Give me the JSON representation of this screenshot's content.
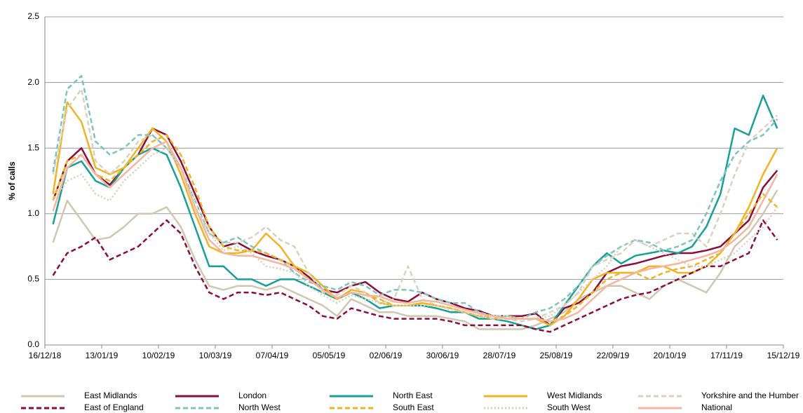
{
  "chart_data": {
    "type": "line",
    "y_label": "% of calls",
    "x": [
      "2018-12-20",
      "2018-12-27",
      "2019-01-03",
      "2019-01-10",
      "2019-01-17",
      "2019-01-24",
      "2019-01-31",
      "2019-02-07",
      "2019-02-14",
      "2019-02-21",
      "2019-02-28",
      "2019-03-07",
      "2019-03-14",
      "2019-03-21",
      "2019-03-28",
      "2019-04-04",
      "2019-04-11",
      "2019-04-18",
      "2019-04-25",
      "2019-05-02",
      "2019-05-09",
      "2019-05-16",
      "2019-05-23",
      "2019-05-30",
      "2019-06-06",
      "2019-06-13",
      "2019-06-20",
      "2019-06-27",
      "2019-07-04",
      "2019-07-11",
      "2019-07-18",
      "2019-07-25",
      "2019-08-01",
      "2019-08-08",
      "2019-08-15",
      "2019-08-22",
      "2019-08-29",
      "2019-09-05",
      "2019-09-12",
      "2019-09-19",
      "2019-09-26",
      "2019-10-03",
      "2019-10-10",
      "2019-10-17",
      "2019-10-24",
      "2019-10-31",
      "2019-11-07",
      "2019-11-14",
      "2019-11-21",
      "2019-11-28",
      "2019-12-05",
      "2019-12-12"
    ],
    "xlim": [
      "2018-12-16",
      "2019-12-15"
    ],
    "xticks": [
      {
        "value": "2018-12-16",
        "label": "16/12/18"
      },
      {
        "value": "2019-01-13",
        "label": "13/01/19"
      },
      {
        "value": "2019-02-10",
        "label": "10/02/19"
      },
      {
        "value": "2019-03-10",
        "label": "10/03/19"
      },
      {
        "value": "2019-04-07",
        "label": "07/04/19"
      },
      {
        "value": "2019-05-05",
        "label": "05/05/19"
      },
      {
        "value": "2019-06-02",
        "label": "02/06/19"
      },
      {
        "value": "2019-06-30",
        "label": "30/06/19"
      },
      {
        "value": "2019-07-28",
        "label": "28/07/19"
      },
      {
        "value": "2019-08-25",
        "label": "25/08/19"
      },
      {
        "value": "2019-09-22",
        "label": "22/09/19"
      },
      {
        "value": "2019-10-20",
        "label": "20/10/19"
      },
      {
        "value": "2019-11-17",
        "label": "17/11/19"
      },
      {
        "value": "2019-12-15",
        "label": "15/12/19"
      }
    ],
    "ylim": [
      0,
      2.5
    ],
    "yticks": [
      {
        "value": 0,
        "label": "0.0"
      },
      0.5,
      {
        "value": 1,
        "label": "1.0"
      },
      1.5,
      {
        "value": 2,
        "label": "2.0"
      },
      2.5
    ],
    "grid": true,
    "series": [
      {
        "name": "East Midlands",
        "color": "#cfc7b0",
        "style": "solid",
        "values": [
          0.78,
          1.1,
          0.95,
          0.8,
          0.82,
          0.9,
          1.0,
          1.0,
          1.05,
          0.9,
          0.65,
          0.45,
          0.42,
          0.45,
          0.45,
          0.42,
          0.45,
          0.4,
          0.35,
          0.3,
          0.22,
          0.35,
          0.3,
          0.25,
          0.25,
          0.22,
          0.22,
          0.22,
          0.2,
          0.18,
          0.12,
          0.12,
          0.12,
          0.12,
          0.15,
          0.2,
          0.25,
          0.35,
          0.4,
          0.45,
          0.45,
          0.4,
          0.35,
          0.45,
          0.5,
          0.45,
          0.4,
          0.55,
          0.75,
          0.85,
          1.0,
          1.18
        ]
      },
      {
        "name": "London",
        "color": "#8b0d3a",
        "style": "solid",
        "values": [
          1.1,
          1.4,
          1.5,
          1.3,
          1.22,
          1.35,
          1.45,
          1.65,
          1.6,
          1.4,
          1.15,
          0.9,
          0.75,
          0.78,
          0.72,
          0.68,
          0.65,
          0.6,
          0.52,
          0.42,
          0.4,
          0.45,
          0.48,
          0.4,
          0.35,
          0.33,
          0.4,
          0.35,
          0.32,
          0.28,
          0.26,
          0.22,
          0.22,
          0.22,
          0.24,
          0.15,
          0.28,
          0.32,
          0.4,
          0.55,
          0.6,
          0.62,
          0.65,
          0.68,
          0.7,
          0.7,
          0.72,
          0.75,
          0.85,
          0.95,
          1.2,
          1.33
        ]
      },
      {
        "name": "North East",
        "color": "#17a097",
        "style": "solid",
        "values": [
          0.92,
          1.35,
          1.4,
          1.25,
          1.2,
          1.35,
          1.45,
          1.5,
          1.45,
          1.2,
          0.9,
          0.6,
          0.6,
          0.5,
          0.5,
          0.45,
          0.5,
          0.5,
          0.45,
          0.4,
          0.35,
          0.4,
          0.35,
          0.28,
          0.3,
          0.3,
          0.3,
          0.28,
          0.25,
          0.25,
          0.2,
          0.2,
          0.18,
          0.15,
          0.12,
          0.15,
          0.3,
          0.45,
          0.6,
          0.7,
          0.62,
          0.68,
          0.7,
          0.72,
          0.7,
          0.75,
          0.9,
          1.15,
          1.65,
          1.6,
          1.9,
          1.65
        ]
      },
      {
        "name": "West Midlands",
        "color": "#f0b323",
        "style": "solid",
        "values": [
          1.15,
          1.85,
          1.7,
          1.35,
          1.3,
          1.35,
          1.5,
          1.65,
          1.55,
          1.3,
          1.0,
          0.75,
          0.7,
          0.7,
          0.72,
          0.85,
          0.75,
          0.6,
          0.55,
          0.45,
          0.35,
          0.42,
          0.4,
          0.32,
          0.3,
          0.3,
          0.32,
          0.3,
          0.28,
          0.25,
          0.22,
          0.2,
          0.22,
          0.2,
          0.2,
          0.15,
          0.22,
          0.35,
          0.5,
          0.55,
          0.55,
          0.55,
          0.6,
          0.6,
          0.55,
          0.55,
          0.6,
          0.7,
          0.85,
          1.05,
          1.3,
          1.5
        ]
      },
      {
        "name": "Yorkshire and the Humber",
        "color": "#d9d2bd",
        "style": "dashed",
        "values": [
          1.3,
          1.8,
          1.95,
          1.4,
          1.3,
          1.4,
          1.55,
          1.6,
          1.5,
          1.35,
          1.05,
          0.85,
          0.78,
          0.78,
          0.82,
          0.9,
          0.8,
          0.75,
          0.55,
          0.4,
          0.38,
          0.45,
          0.4,
          0.32,
          0.35,
          0.6,
          0.35,
          0.3,
          0.28,
          0.25,
          0.22,
          0.2,
          0.2,
          0.18,
          0.2,
          0.25,
          0.3,
          0.4,
          0.6,
          0.65,
          0.7,
          0.8,
          0.75,
          0.8,
          0.85,
          0.85,
          0.75,
          1.0,
          1.3,
          1.55,
          1.65,
          1.75
        ]
      },
      {
        "name": "East of England",
        "color": "#8b0d3a",
        "style": "dashed",
        "values": [
          0.53,
          0.7,
          0.75,
          0.82,
          0.65,
          0.7,
          0.75,
          0.85,
          0.95,
          0.85,
          0.6,
          0.4,
          0.35,
          0.4,
          0.4,
          0.38,
          0.4,
          0.35,
          0.3,
          0.22,
          0.2,
          0.28,
          0.25,
          0.22,
          0.2,
          0.2,
          0.2,
          0.2,
          0.18,
          0.15,
          0.15,
          0.15,
          0.15,
          0.15,
          0.12,
          0.1,
          0.15,
          0.2,
          0.25,
          0.3,
          0.35,
          0.38,
          0.4,
          0.45,
          0.5,
          0.55,
          0.6,
          0.6,
          0.65,
          0.7,
          0.95,
          0.8
        ]
      },
      {
        "name": "North West",
        "color": "#7dc4c0",
        "style": "dashed",
        "values": [
          1.32,
          1.95,
          2.05,
          1.55,
          1.45,
          1.5,
          1.6,
          1.6,
          1.5,
          1.35,
          1.1,
          0.85,
          0.78,
          0.82,
          0.75,
          0.7,
          0.65,
          0.55,
          0.48,
          0.45,
          0.42,
          0.48,
          0.45,
          0.38,
          0.42,
          0.42,
          0.4,
          0.35,
          0.32,
          0.32,
          0.25,
          0.22,
          0.22,
          0.2,
          0.25,
          0.28,
          0.35,
          0.45,
          0.6,
          0.68,
          0.75,
          0.8,
          0.78,
          0.72,
          0.75,
          0.8,
          1.0,
          1.25,
          1.45,
          1.55,
          1.6,
          1.72
        ]
      },
      {
        "name": "South East",
        "color": "#f0b323",
        "style": "dashed",
        "values": [
          1.1,
          1.4,
          1.45,
          1.3,
          1.25,
          1.35,
          1.45,
          1.55,
          1.6,
          1.45,
          1.2,
          0.9,
          0.75,
          0.72,
          0.72,
          0.7,
          0.65,
          0.6,
          0.5,
          0.42,
          0.35,
          0.4,
          0.38,
          0.35,
          0.3,
          0.3,
          0.32,
          0.3,
          0.28,
          0.25,
          0.22,
          0.22,
          0.2,
          0.2,
          0.2,
          0.18,
          0.22,
          0.3,
          0.4,
          0.5,
          0.55,
          0.55,
          0.5,
          0.55,
          0.58,
          0.6,
          0.65,
          0.7,
          0.85,
          1.0,
          1.15,
          1.05
        ]
      },
      {
        "name": "South West",
        "color": "#d6d0b8",
        "style": "dotted",
        "values": [
          1.1,
          1.25,
          1.3,
          1.15,
          1.1,
          1.25,
          1.35,
          1.45,
          1.5,
          1.35,
          1.1,
          0.85,
          0.72,
          0.75,
          0.7,
          0.6,
          0.58,
          0.55,
          0.45,
          0.38,
          0.32,
          0.38,
          0.35,
          0.32,
          0.3,
          0.3,
          0.3,
          0.3,
          0.27,
          0.25,
          0.22,
          0.22,
          0.22,
          0.2,
          0.2,
          0.22,
          0.3,
          0.4,
          0.5,
          0.6,
          0.75,
          0.8,
          0.75,
          0.7,
          0.65,
          0.6,
          0.6,
          0.65,
          0.7,
          0.8,
          0.9,
          1.05
        ]
      },
      {
        "name": "National",
        "color": "#f4b6a0",
        "style": "solid",
        "values": [
          1.02,
          1.35,
          1.45,
          1.3,
          1.2,
          1.3,
          1.4,
          1.5,
          1.55,
          1.35,
          1.05,
          0.8,
          0.7,
          0.68,
          0.68,
          0.65,
          0.62,
          0.58,
          0.5,
          0.42,
          0.36,
          0.4,
          0.38,
          0.37,
          0.33,
          0.32,
          0.34,
          0.33,
          0.3,
          0.27,
          0.24,
          0.22,
          0.2,
          0.2,
          0.2,
          0.18,
          0.2,
          0.25,
          0.35,
          0.45,
          0.5,
          0.55,
          0.58,
          0.6,
          0.62,
          0.65,
          0.68,
          0.72,
          0.8,
          0.9,
          1.1,
          1.3
        ]
      }
    ]
  }
}
